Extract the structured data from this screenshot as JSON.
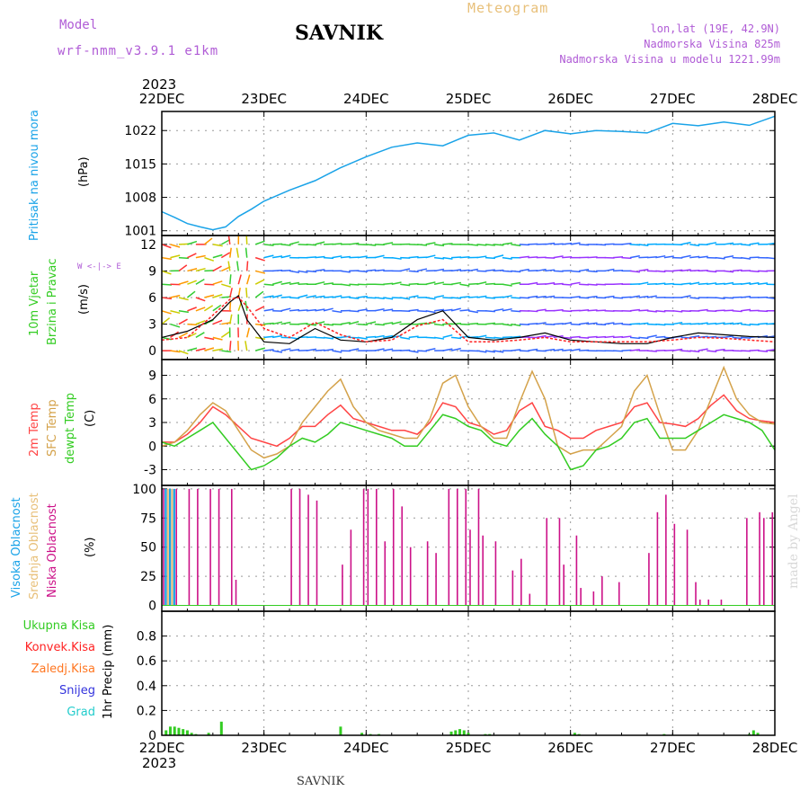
{
  "header": {
    "model_label": "Model",
    "model_name": "wrf-nmm_v3.9.1  e1km",
    "station": "SAVNIK",
    "meteogram": "Meteogram",
    "lonlat": "lon,lat (19E, 42.9N)",
    "elevation": "Nadmorska Visina 825m",
    "model_elevation": "Nadmorska Visina u modelu 1221.99m",
    "year_top": "2023",
    "year_bottom": "2023",
    "footer_station": "SAVNIK",
    "credit": "made by Angel"
  },
  "time_axis": {
    "labels": [
      "22DEC",
      "23DEC",
      "24DEC",
      "25DEC",
      "26DEC",
      "27DEC",
      "28DEC"
    ],
    "hours": [
      0,
      24,
      48,
      72,
      96,
      120,
      144
    ]
  },
  "chart_data": [
    {
      "type": "line",
      "panel": "pressure",
      "ylabel": "Pritisak na nivou mora",
      "unit": "(hPa)",
      "ylim": [
        1000,
        1026
      ],
      "yticks": [
        1001,
        1008,
        1015,
        1022
      ],
      "grid": true,
      "colors": {
        "pressure": "#1aa3e8"
      },
      "x": [
        0,
        3,
        6,
        9,
        12,
        15,
        18,
        21,
        24,
        30,
        36,
        42,
        48,
        54,
        60,
        66,
        72,
        78,
        84,
        90,
        96,
        102,
        108,
        114,
        120,
        126,
        132,
        138,
        144
      ],
      "series": [
        {
          "values": [
            1005,
            1003.8,
            1002.5,
            1001.8,
            1001.2,
            1001.8,
            1004,
            1005.5,
            1007.2,
            1009.5,
            1011.5,
            1014.2,
            1016.5,
            1018.5,
            1019.4,
            1018.8,
            1021,
            1021.5,
            1020,
            1022,
            1021.3,
            1022,
            1021.8,
            1021.5,
            1023.5,
            1023,
            1023.8,
            1023.1,
            1025
          ]
        }
      ]
    },
    {
      "type": "line",
      "panel": "wind",
      "ylabel": "10m Vjetar Brzina i Pravac",
      "unit": "(m/s)",
      "compass": "W <-|-> E",
      "ylim": [
        -1,
        13
      ],
      "yticks": [
        0,
        3,
        6,
        9,
        12
      ],
      "grid": true,
      "colors": {
        "speed": "#000000",
        "gust": "#ff2222",
        "barbs": [
          "#ff3333",
          "#ff9900",
          "#cccc00",
          "#33cc33",
          "#00aaff",
          "#3366ff",
          "#9933ff"
        ]
      },
      "x": [
        0,
        6,
        12,
        16,
        18,
        20,
        24,
        30,
        36,
        42,
        48,
        54,
        60,
        66,
        72,
        78,
        84,
        90,
        96,
        102,
        108,
        114,
        120,
        126,
        132,
        138,
        144
      ],
      "series": [
        {
          "name": "speed",
          "values": [
            1.5,
            2.2,
            3.5,
            5.5,
            6.2,
            3.5,
            1,
            0.8,
            2.5,
            1.2,
            1,
            1.5,
            3.5,
            4.5,
            1.5,
            1.2,
            1.5,
            2,
            1.2,
            1,
            0.8,
            0.8,
            1.5,
            2,
            1.8,
            1.6,
            1.5
          ]
        },
        {
          "name": "gust",
          "values": [
            1.2,
            1.5,
            4,
            5.8,
            6,
            5,
            2.5,
            1.5,
            3.2,
            1.8,
            1,
            1.2,
            2.8,
            3.5,
            1,
            1,
            1.2,
            1.5,
            1,
            1,
            1,
            1,
            1.2,
            1.5,
            1.4,
            1.2,
            1
          ]
        }
      ]
    },
    {
      "type": "line",
      "panel": "temperature",
      "ylabel": "2m Temp / SFC Temp / dewpt Temp",
      "unit": "(C)",
      "ylim": [
        -5,
        11
      ],
      "yticks": [
        -3,
        0,
        3,
        6,
        9
      ],
      "grid": true,
      "x": [
        0,
        3,
        6,
        9,
        12,
        15,
        18,
        21,
        24,
        27,
        30,
        33,
        36,
        39,
        42,
        45,
        48,
        51,
        54,
        57,
        60,
        63,
        66,
        69,
        72,
        75,
        78,
        81,
        84,
        87,
        90,
        93,
        96,
        99,
        102,
        105,
        108,
        111,
        114,
        117,
        120,
        123,
        126,
        129,
        132,
        135,
        138,
        141,
        144
      ],
      "series": [
        {
          "name": "2m Temp",
          "color": "#ff4444",
          "values": [
            0.5,
            0.5,
            1.5,
            3,
            5,
            4,
            2.5,
            1,
            0.5,
            0,
            1,
            2.5,
            2.5,
            4,
            5.2,
            3.5,
            3,
            2.5,
            2,
            2,
            1.5,
            3,
            5.5,
            5,
            3,
            2.5,
            1.5,
            2,
            4.5,
            5.5,
            2.5,
            2,
            1,
            1,
            2,
            2.5,
            3,
            5,
            5.5,
            3,
            2.8,
            2.5,
            3.5,
            5.2,
            6.5,
            4.5,
            3.5,
            3.2,
            3
          ]
        },
        {
          "name": "SFC Temp",
          "color": "#d4a24a",
          "values": [
            0,
            0.5,
            2,
            4,
            5.5,
            4.5,
            2,
            -0.5,
            -1.5,
            -1,
            0,
            3,
            5,
            7,
            8.5,
            5,
            3,
            2,
            1.5,
            1,
            1,
            3.5,
            8,
            9,
            5,
            2.5,
            1,
            1,
            5.5,
            9.5,
            6,
            0,
            -1,
            -0.5,
            -0.5,
            1,
            2.5,
            7,
            9,
            4,
            -0.5,
            -0.5,
            2,
            6,
            10,
            6,
            4,
            3,
            2.8
          ]
        },
        {
          "name": "dewpt Temp",
          "color": "#33cc22",
          "values": [
            0.5,
            0,
            1,
            2,
            3,
            1,
            -1,
            -3,
            -2.5,
            -1.5,
            0,
            1,
            0.5,
            1.5,
            3,
            2.5,
            2,
            1.5,
            1,
            0,
            0,
            2,
            4,
            3.5,
            2.5,
            2,
            0.5,
            0,
            2,
            3.5,
            1.5,
            0,
            -3,
            -2.5,
            -0.5,
            0,
            1,
            3,
            3.5,
            1,
            1,
            1,
            2,
            3,
            4,
            3.5,
            3,
            2,
            -0.5
          ]
        }
      ]
    },
    {
      "type": "bar",
      "panel": "cloud",
      "ylabel": "Visoka Oblacnost / Srednja Oblacnost / Niska Oblacnost",
      "unit": "(%)",
      "ylim": [
        -5,
        103
      ],
      "yticks": [
        0,
        25,
        50,
        75,
        100
      ],
      "grid": true,
      "colors": {
        "high": "#1aa3e8",
        "mid": "#e8c07a",
        "low": "#cc1188"
      },
      "high": {
        "x": [
          0.5,
          1.5,
          2.5
        ],
        "values": [
          100,
          100,
          100
        ]
      },
      "mid": {
        "x": [
          1.0,
          2.0
        ],
        "values": [
          100,
          100
        ]
      },
      "low": {
        "x": [
          0,
          1,
          2,
          3,
          6,
          8,
          11,
          13,
          16,
          17,
          30,
          32,
          34,
          36,
          42,
          44,
          47,
          48,
          50,
          52,
          54,
          56,
          58,
          62,
          64,
          67,
          69,
          71,
          72,
          74,
          75,
          78,
          82,
          84,
          86,
          90,
          93,
          94,
          97,
          98,
          101,
          103,
          107,
          114,
          116,
          118,
          120,
          123,
          125,
          126,
          128,
          131,
          137,
          140,
          141,
          143
        ],
        "values": [
          100,
          100,
          100,
          100,
          100,
          100,
          100,
          100,
          100,
          22,
          100,
          100,
          95,
          90,
          35,
          65,
          100,
          100,
          100,
          55,
          100,
          85,
          50,
          55,
          45,
          100,
          100,
          100,
          65,
          100,
          60,
          55,
          30,
          40,
          10,
          75,
          75,
          35,
          60,
          15,
          12,
          25,
          20,
          45,
          80,
          95,
          70,
          65,
          20,
          5,
          5,
          5,
          75,
          80,
          75,
          80
        ]
      }
    },
    {
      "type": "bar",
      "panel": "precip",
      "ylabel": "1hr Precip",
      "unit": "(mm)",
      "ylim": [
        0,
        1.0
      ],
      "yticks": [
        0,
        0.2,
        0.4,
        0.6,
        0.8
      ],
      "grid": true,
      "legend": [
        {
          "name": "Ukupna Kisa",
          "color": "#33cc22"
        },
        {
          "name": "Konvek.Kisa",
          "color": "#ff2222"
        },
        {
          "name": "Zaledj.Kisa",
          "color": "#ff7722"
        },
        {
          "name": "Snijeg",
          "color": "#3333dd"
        },
        {
          "name": "Grad",
          "color": "#22cccc"
        }
      ],
      "x": [
        1,
        2,
        3,
        4,
        5,
        6,
        7,
        8,
        11,
        14,
        42,
        47,
        49,
        51,
        68,
        69,
        70,
        71,
        72,
        76,
        77,
        97,
        98,
        118,
        138,
        139,
        140
      ],
      "values": [
        0.04,
        0.07,
        0.07,
        0.06,
        0.05,
        0.04,
        0.02,
        0.01,
        0.02,
        0.11,
        0.07,
        0.02,
        0.01,
        0.01,
        0.03,
        0.04,
        0.05,
        0.04,
        0.02,
        0.01,
        0.01,
        0.02,
        0.01,
        0.01,
        0.01,
        0.04,
        0.02
      ]
    }
  ]
}
